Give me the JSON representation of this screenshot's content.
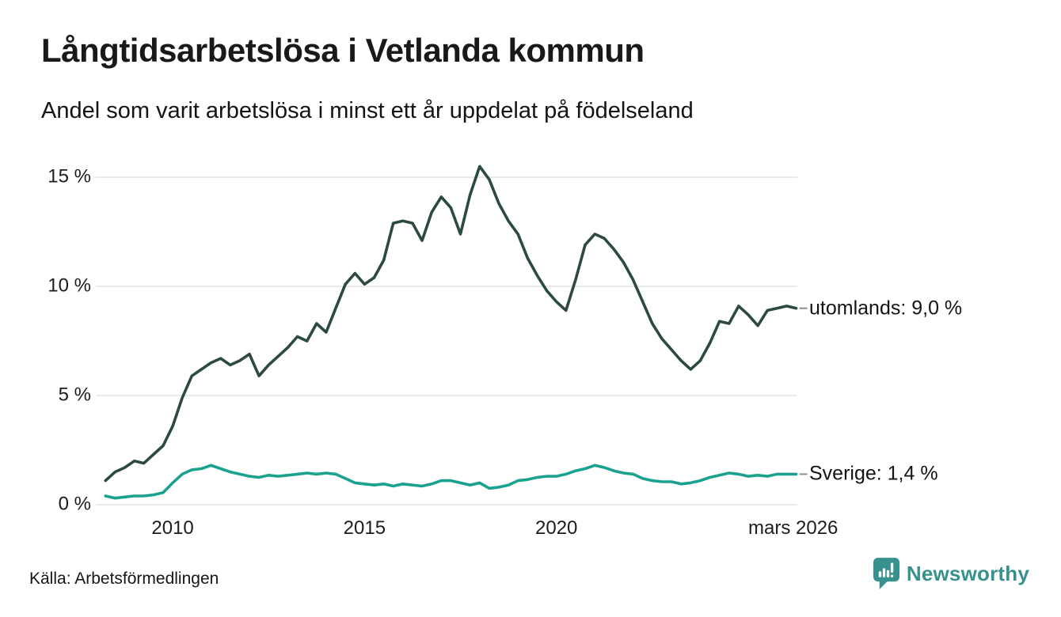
{
  "footer": {
    "source": "Källa: Arbetsförmedlingen",
    "brand": "Newsworthy"
  },
  "colors": {
    "utomlands": "#2c4a43",
    "sverige": "#1aa28f",
    "grid": "#e4e4e4",
    "connector": "#8f8f8f",
    "brand": "#37928d",
    "logo_bars": "#ffffff"
  },
  "chart_data": {
    "type": "line",
    "title": "Långtidsarbetslösa i Vetlanda kommun",
    "subtitle": "Andel som varit arbetslösa i minst ett år uppdelat på födelseland",
    "xlabel": "",
    "ylabel": "",
    "grid": "horizontal",
    "legend_position": "end-of-line",
    "x_range": [
      2008.1,
      2026.3
    ],
    "y_range": [
      0,
      16.2
    ],
    "x_ticks": [
      {
        "value": 2010,
        "label": "2010"
      },
      {
        "value": 2015,
        "label": "2015"
      },
      {
        "value": 2020,
        "label": "2020"
      },
      {
        "value": 2026.17,
        "label": "mars 2026"
      }
    ],
    "y_ticks": [
      {
        "value": 0,
        "label": "0 %"
      },
      {
        "value": 5,
        "label": "5 %"
      },
      {
        "value": 10,
        "label": "10 %"
      },
      {
        "value": 15,
        "label": "15 %"
      }
    ],
    "x": [
      2008.25,
      2008.5,
      2008.75,
      2009,
      2009.25,
      2009.5,
      2009.75,
      2010,
      2010.25,
      2010.5,
      2010.75,
      2011,
      2011.25,
      2011.5,
      2011.75,
      2012,
      2012.25,
      2012.5,
      2012.75,
      2013,
      2013.25,
      2013.5,
      2013.75,
      2014,
      2014.25,
      2014.5,
      2014.75,
      2015,
      2015.25,
      2015.5,
      2015.75,
      2016,
      2016.25,
      2016.5,
      2016.75,
      2017,
      2017.25,
      2017.5,
      2017.75,
      2018,
      2018.25,
      2018.5,
      2018.75,
      2019,
      2019.25,
      2019.5,
      2019.75,
      2020,
      2020.25,
      2020.5,
      2020.75,
      2021,
      2021.25,
      2021.5,
      2021.75,
      2022,
      2022.25,
      2022.5,
      2022.75,
      2023,
      2023.25,
      2023.5,
      2023.75,
      2024,
      2024.25,
      2024.5,
      2024.75,
      2025,
      2025.25,
      2025.5,
      2025.75,
      2026,
      2026.25
    ],
    "series": [
      {
        "name": "utomlands",
        "end_label": "utomlands: 9,0 %",
        "end_value": "9,0 %",
        "color": "#2c4a43",
        "values": [
          1.1,
          1.5,
          1.7,
          2.0,
          1.9,
          2.3,
          2.7,
          3.6,
          4.9,
          5.9,
          6.2,
          6.5,
          6.7,
          6.4,
          6.6,
          6.9,
          5.9,
          6.4,
          6.8,
          7.2,
          7.7,
          7.5,
          8.3,
          7.9,
          9.0,
          10.1,
          10.6,
          10.1,
          10.4,
          11.2,
          12.9,
          13.0,
          12.9,
          12.1,
          13.4,
          14.1,
          13.6,
          12.4,
          14.2,
          15.5,
          14.9,
          13.8,
          13.0,
          12.4,
          11.3,
          10.5,
          9.8,
          9.3,
          8.9,
          10.3,
          11.9,
          12.4,
          12.2,
          11.7,
          11.1,
          10.3,
          9.3,
          8.3,
          7.6,
          7.1,
          6.6,
          6.2,
          6.6,
          7.4,
          8.4,
          8.3,
          9.1,
          8.7,
          8.2,
          8.9,
          9.0,
          9.1,
          9.0
        ]
      },
      {
        "name": "Sverige",
        "end_label": "Sverige: 1,4 %",
        "end_value": "1,4 %",
        "color": "#1aa28f",
        "values": [
          0.4,
          0.3,
          0.35,
          0.4,
          0.4,
          0.45,
          0.55,
          1.0,
          1.4,
          1.6,
          1.65,
          1.8,
          1.65,
          1.5,
          1.4,
          1.3,
          1.25,
          1.35,
          1.3,
          1.35,
          1.4,
          1.45,
          1.4,
          1.45,
          1.4,
          1.2,
          1.0,
          0.95,
          0.9,
          0.95,
          0.85,
          0.95,
          0.9,
          0.85,
          0.95,
          1.1,
          1.1,
          1.0,
          0.9,
          1.0,
          0.75,
          0.8,
          0.9,
          1.1,
          1.15,
          1.25,
          1.3,
          1.3,
          1.4,
          1.55,
          1.65,
          1.8,
          1.7,
          1.55,
          1.45,
          1.4,
          1.2,
          1.1,
          1.05,
          1.05,
          0.95,
          1.0,
          1.1,
          1.25,
          1.35,
          1.45,
          1.4,
          1.3,
          1.35,
          1.3,
          1.4,
          1.4,
          1.4
        ]
      }
    ]
  }
}
